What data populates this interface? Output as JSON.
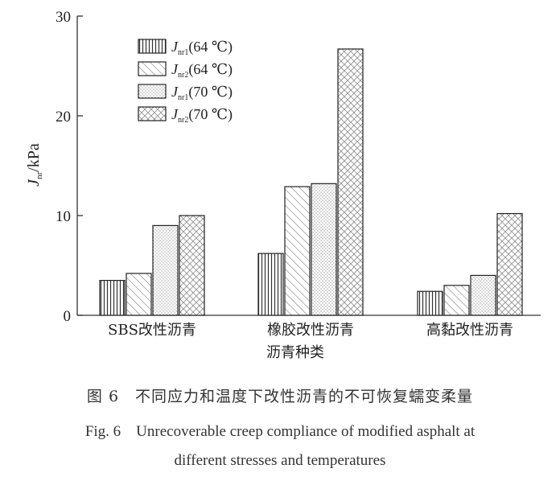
{
  "chart_data": {
    "type": "bar",
    "categories": [
      "SBS改性沥青",
      "橡胶改性沥青",
      "高黏改性沥青"
    ],
    "series": [
      {
        "name_main": "J",
        "name_sub": "nr1",
        "name_tail": "(64 ℃)",
        "pattern": "vertical-lines",
        "values": [
          3.5,
          6.2,
          2.4
        ]
      },
      {
        "name_main": "J",
        "name_sub": "nr2",
        "name_tail": "(64 ℃)",
        "pattern": "diagonal-lines",
        "values": [
          4.2,
          12.9,
          3.0
        ]
      },
      {
        "name_main": "J",
        "name_sub": "nr1",
        "name_tail": "(70 ℃)",
        "pattern": "dots",
        "values": [
          9.0,
          13.2,
          4.0
        ]
      },
      {
        "name_main": "J",
        "name_sub": "nr2",
        "name_tail": "(70 ℃)",
        "pattern": "crosshatch",
        "values": [
          10.0,
          26.7,
          10.2
        ]
      }
    ],
    "ylim": [
      0,
      30
    ],
    "yticks": [
      "0",
      "10",
      "20",
      "30"
    ],
    "ylabel_main": "J",
    "ylabel_sub": "nr",
    "ylabel_tail": "/kPa",
    "xlabel": "沥青种类",
    "legend_position": "top-left",
    "grid": false
  },
  "caption": {
    "zh": "图 6　不同应力和温度下改性沥青的不可恢复蠕变柔量",
    "en_line1": "Fig. 6　Unrecoverable creep compliance of modified asphalt at",
    "en_line2": "different stresses and temperatures"
  }
}
